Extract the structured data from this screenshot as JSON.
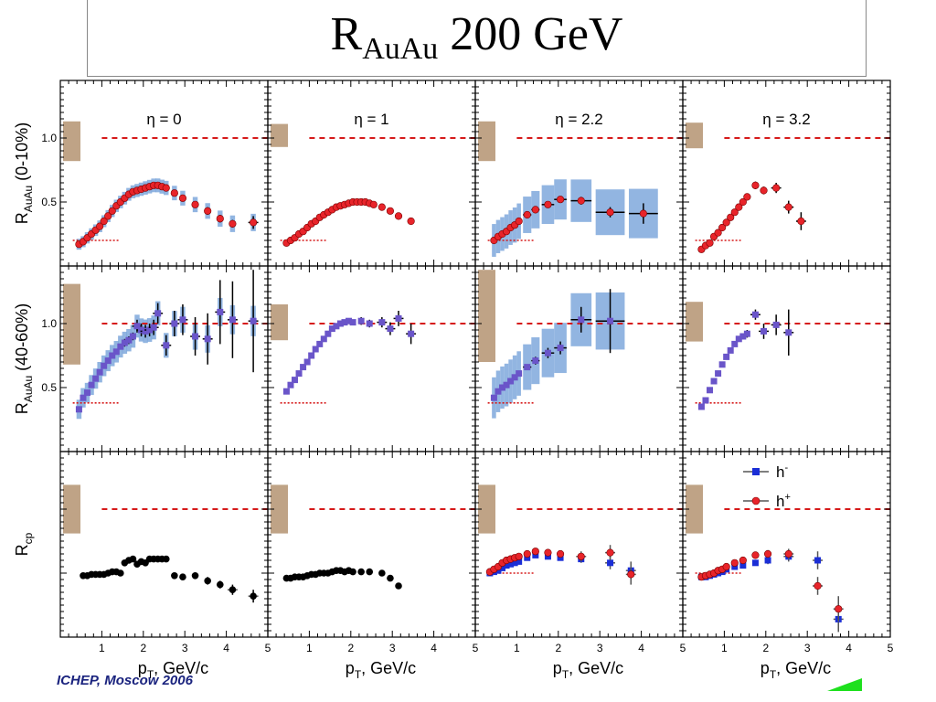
{
  "title": {
    "main": "R",
    "sub": "AuAu",
    "rest": " 200 GeV"
  },
  "footer": "ICHEP, Moscow 2006",
  "colors": {
    "red_marker": "#e8242a",
    "blue_marker": "#1b2ed6",
    "purple_marker": "#6a55c9",
    "band": "#7fa8dc",
    "norm_box": "#bfa386",
    "ref_line": "#d61a1a"
  },
  "chart_data": {
    "type": "scatter",
    "columns": [
      "η = 0",
      "η = 1",
      "η = 2.2",
      "η = 3.2"
    ],
    "rows": [
      {
        "ylabel_main": "R",
        "ylabel_sub": "AuAu",
        "ylabel_rest": " (0-10%)"
      },
      {
        "ylabel_main": "R",
        "ylabel_sub": "AuAu",
        "ylabel_rest": " (40-60%)"
      },
      {
        "ylabel_main": "R",
        "ylabel_sub": "cp",
        "ylabel_rest": ""
      }
    ],
    "xlabel_main": "p",
    "xlabel_sub": "T",
    "xlabel_rest": ", GeV/c",
    "xlim": [
      0,
      5
    ],
    "ylim": [
      0.0,
      1.45
    ],
    "x_ticks": [
      "1",
      "2",
      "3",
      "4",
      "5"
    ],
    "y_ticks": [
      "0.5",
      "1.0"
    ],
    "y_tick_values": [
      0.5,
      1.0
    ],
    "legend": {
      "position": "top-right of bottom-right panel",
      "entries": [
        "h-",
        "h+"
      ]
    },
    "panels": [
      {
        "row": 0,
        "col": 0,
        "marker": "red",
        "norm": [
          0.82,
          1.13
        ],
        "x": [
          0.45,
          0.55,
          0.65,
          0.75,
          0.85,
          0.95,
          1.05,
          1.15,
          1.25,
          1.35,
          1.45,
          1.55,
          1.65,
          1.75,
          1.85,
          1.95,
          2.05,
          2.15,
          2.25,
          2.35,
          2.45,
          2.55,
          2.75,
          2.95,
          3.25,
          3.55,
          3.85,
          4.15,
          4.65
        ],
        "y": [
          0.17,
          0.19,
          0.22,
          0.25,
          0.28,
          0.31,
          0.35,
          0.39,
          0.43,
          0.47,
          0.5,
          0.53,
          0.56,
          0.58,
          0.59,
          0.6,
          0.61,
          0.62,
          0.63,
          0.63,
          0.62,
          0.61,
          0.57,
          0.53,
          0.48,
          0.43,
          0.37,
          0.33,
          0.34
        ],
        "yerr": [
          0.01,
          0.01,
          0.01,
          0.01,
          0.01,
          0.01,
          0.01,
          0.01,
          0.01,
          0.01,
          0.01,
          0.01,
          0.01,
          0.01,
          0.01,
          0.01,
          0.01,
          0.01,
          0.01,
          0.01,
          0.01,
          0.01,
          0.02,
          0.02,
          0.02,
          0.03,
          0.03,
          0.03,
          0.05
        ],
        "band": 0.04
      },
      {
        "row": 0,
        "col": 1,
        "marker": "red",
        "norm": [
          0.93,
          1.11
        ],
        "x": [
          0.45,
          0.55,
          0.65,
          0.75,
          0.85,
          0.95,
          1.05,
          1.15,
          1.25,
          1.35,
          1.45,
          1.55,
          1.65,
          1.75,
          1.85,
          1.95,
          2.05,
          2.15,
          2.25,
          2.35,
          2.45,
          2.55,
          2.75,
          2.95,
          3.15,
          3.45
        ],
        "y": [
          0.18,
          0.2,
          0.22,
          0.25,
          0.27,
          0.3,
          0.33,
          0.35,
          0.38,
          0.4,
          0.42,
          0.44,
          0.46,
          0.47,
          0.48,
          0.49,
          0.5,
          0.5,
          0.5,
          0.5,
          0.49,
          0.48,
          0.46,
          0.43,
          0.39,
          0.35
        ],
        "yerr": [
          0.005,
          0.005,
          0.005,
          0.005,
          0.005,
          0.005,
          0.005,
          0.005,
          0.005,
          0.005,
          0.005,
          0.005,
          0.005,
          0.005,
          0.005,
          0.005,
          0.005,
          0.005,
          0.005,
          0.005,
          0.005,
          0.005,
          0.01,
          0.01,
          0.01,
          0.015
        ],
        "band": 0
      },
      {
        "row": 0,
        "col": 2,
        "marker": "red",
        "norm": [
          0.82,
          1.13
        ],
        "x": [
          0.45,
          0.55,
          0.65,
          0.75,
          0.85,
          0.95,
          1.05,
          1.25,
          1.45,
          1.75,
          2.05,
          2.55,
          3.25,
          4.05
        ],
        "y": [
          0.2,
          0.23,
          0.25,
          0.27,
          0.3,
          0.32,
          0.35,
          0.4,
          0.44,
          0.48,
          0.52,
          0.51,
          0.42,
          0.41
        ],
        "yerr": [
          0.01,
          0.01,
          0.01,
          0.01,
          0.01,
          0.01,
          0.01,
          0.02,
          0.02,
          0.02,
          0.02,
          0.03,
          0.04,
          0.08
        ],
        "xerr": [
          0.05,
          0.05,
          0.05,
          0.05,
          0.05,
          0.05,
          0.05,
          0.1,
          0.1,
          0.15,
          0.15,
          0.25,
          0.35,
          0.35
        ],
        "band": 0.12
      },
      {
        "row": 0,
        "col": 3,
        "marker": "red",
        "norm": [
          0.92,
          1.12
        ],
        "x": [
          0.45,
          0.55,
          0.65,
          0.75,
          0.85,
          0.95,
          1.05,
          1.15,
          1.25,
          1.35,
          1.45,
          1.55,
          1.75,
          1.95,
          2.25,
          2.55,
          2.85
        ],
        "y": [
          0.13,
          0.16,
          0.18,
          0.23,
          0.26,
          0.3,
          0.34,
          0.38,
          0.42,
          0.46,
          0.5,
          0.54,
          0.63,
          0.59,
          0.61,
          0.46,
          0.35
        ],
        "yerr": [
          0.01,
          0.01,
          0.01,
          0.01,
          0.01,
          0.01,
          0.01,
          0.01,
          0.02,
          0.02,
          0.02,
          0.02,
          0.03,
          0.03,
          0.04,
          0.05,
          0.07
        ],
        "band": 0
      },
      {
        "row": 1,
        "col": 0,
        "marker": "purple",
        "norm": [
          0.68,
          1.31
        ],
        "x": [
          0.45,
          0.55,
          0.65,
          0.75,
          0.85,
          0.95,
          1.05,
          1.15,
          1.25,
          1.35,
          1.45,
          1.55,
          1.65,
          1.75,
          1.85,
          1.95,
          2.05,
          2.15,
          2.25,
          2.35,
          2.55,
          2.75,
          2.95,
          3.25,
          3.55,
          3.85,
          4.15,
          4.65
        ],
        "y": [
          0.33,
          0.42,
          0.46,
          0.52,
          0.57,
          0.62,
          0.67,
          0.71,
          0.75,
          0.78,
          0.82,
          0.85,
          0.87,
          0.9,
          0.98,
          0.95,
          0.94,
          0.95,
          0.97,
          1.08,
          0.83,
          1.0,
          1.03,
          0.9,
          0.88,
          1.09,
          1.03,
          1.02
        ],
        "yerr": [
          0.02,
          0.02,
          0.02,
          0.02,
          0.02,
          0.02,
          0.02,
          0.02,
          0.02,
          0.02,
          0.02,
          0.03,
          0.03,
          0.03,
          0.05,
          0.05,
          0.05,
          0.05,
          0.06,
          0.08,
          0.08,
          0.1,
          0.12,
          0.15,
          0.2,
          0.25,
          0.3,
          0.4
        ],
        "band": 0.07
      },
      {
        "row": 1,
        "col": 1,
        "marker": "purple",
        "norm": [
          0.87,
          1.15
        ],
        "x": [
          0.45,
          0.55,
          0.65,
          0.75,
          0.85,
          0.95,
          1.05,
          1.15,
          1.25,
          1.35,
          1.45,
          1.55,
          1.65,
          1.75,
          1.85,
          1.95,
          2.05,
          2.25,
          2.45,
          2.75,
          2.95,
          3.15,
          3.45
        ],
        "y": [
          0.47,
          0.52,
          0.56,
          0.61,
          0.66,
          0.7,
          0.75,
          0.8,
          0.84,
          0.88,
          0.92,
          0.96,
          0.98,
          1.0,
          1.01,
          1.02,
          1.01,
          1.02,
          1.0,
          1.01,
          0.96,
          1.04,
          0.92
        ],
        "yerr": [
          0.01,
          0.01,
          0.01,
          0.01,
          0.01,
          0.01,
          0.01,
          0.01,
          0.01,
          0.01,
          0.01,
          0.01,
          0.01,
          0.01,
          0.01,
          0.01,
          0.02,
          0.03,
          0.03,
          0.04,
          0.05,
          0.06,
          0.08
        ],
        "band": 0
      },
      {
        "row": 1,
        "col": 2,
        "marker": "purple",
        "norm": [
          0.7,
          1.42
        ],
        "x": [
          0.45,
          0.55,
          0.65,
          0.75,
          0.85,
          0.95,
          1.05,
          1.25,
          1.45,
          1.75,
          2.05,
          2.55,
          3.25
        ],
        "y": [
          0.42,
          0.47,
          0.5,
          0.52,
          0.55,
          0.58,
          0.61,
          0.66,
          0.71,
          0.77,
          0.81,
          1.03,
          1.02
        ],
        "yerr": [
          0.02,
          0.02,
          0.02,
          0.02,
          0.02,
          0.02,
          0.02,
          0.02,
          0.03,
          0.04,
          0.05,
          0.1,
          0.25
        ],
        "xerr": [
          0.05,
          0.05,
          0.05,
          0.05,
          0.05,
          0.05,
          0.05,
          0.1,
          0.1,
          0.15,
          0.15,
          0.25,
          0.35
        ],
        "band": 0.15
      },
      {
        "row": 1,
        "col": 3,
        "marker": "purple",
        "norm": [
          0.86,
          1.17
        ],
        "x": [
          0.45,
          0.55,
          0.65,
          0.75,
          0.85,
          0.95,
          1.05,
          1.15,
          1.25,
          1.35,
          1.45,
          1.55,
          1.75,
          1.95,
          2.25,
          2.55
        ],
        "y": [
          0.35,
          0.4,
          0.48,
          0.55,
          0.61,
          0.68,
          0.74,
          0.79,
          0.84,
          0.88,
          0.9,
          0.92,
          1.07,
          0.94,
          0.99,
          0.93
        ],
        "yerr": [
          0.02,
          0.02,
          0.02,
          0.02,
          0.02,
          0.02,
          0.02,
          0.02,
          0.02,
          0.02,
          0.02,
          0.03,
          0.04,
          0.06,
          0.08,
          0.18
        ],
        "band": 0
      }
    ],
    "rcp_panels": [
      {
        "col": 0,
        "norm": [
          0.81,
          1.19
        ],
        "series": [
          {
            "marker": "black",
            "x": [
              0.55,
              0.65,
              0.75,
              0.85,
              0.95,
              1.05,
              1.15,
              1.25,
              1.35,
              1.45,
              1.55,
              1.65,
              1.75,
              1.85,
              1.95,
              2.05,
              2.15,
              2.25,
              2.35,
              2.45,
              2.55,
              2.75,
              2.95,
              3.25,
              3.55,
              3.85,
              4.15,
              4.65
            ],
            "y": [
              0.48,
              0.48,
              0.49,
              0.49,
              0.49,
              0.49,
              0.5,
              0.51,
              0.51,
              0.5,
              0.58,
              0.6,
              0.61,
              0.57,
              0.59,
              0.58,
              0.61,
              0.61,
              0.61,
              0.61,
              0.61,
              0.48,
              0.47,
              0.48,
              0.44,
              0.41,
              0.37,
              0.32
            ],
            "yerr": [
              0.01,
              0.01,
              0.01,
              0.01,
              0.01,
              0.01,
              0.01,
              0.01,
              0.01,
              0.01,
              0.01,
              0.01,
              0.01,
              0.01,
              0.01,
              0.01,
              0.01,
              0.01,
              0.01,
              0.01,
              0.01,
              0.02,
              0.02,
              0.02,
              0.03,
              0.03,
              0.04,
              0.05
            ]
          }
        ]
      },
      {
        "col": 1,
        "norm": [
          0.81,
          1.19
        ],
        "series": [
          {
            "marker": "black",
            "x": [
              0.45,
              0.55,
              0.65,
              0.75,
              0.85,
              0.95,
              1.05,
              1.15,
              1.25,
              1.35,
              1.45,
              1.55,
              1.65,
              1.75,
              1.85,
              1.95,
              2.05,
              2.25,
              2.45,
              2.75,
              2.95,
              3.15
            ],
            "y": [
              0.46,
              0.46,
              0.47,
              0.47,
              0.47,
              0.48,
              0.49,
              0.49,
              0.5,
              0.5,
              0.5,
              0.51,
              0.52,
              0.52,
              0.51,
              0.52,
              0.51,
              0.51,
              0.51,
              0.5,
              0.46,
              0.4
            ],
            "yerr": [
              0.01,
              0.01,
              0.01,
              0.01,
              0.01,
              0.01,
              0.01,
              0.01,
              0.01,
              0.01,
              0.01,
              0.01,
              0.01,
              0.01,
              0.01,
              0.01,
              0.01,
              0.01,
              0.01,
              0.01,
              0.02,
              0.02
            ]
          }
        ]
      },
      {
        "col": 2,
        "norm": [
          0.81,
          1.19
        ],
        "series": [
          {
            "name": "h-",
            "marker": "blue",
            "x": [
              0.35,
              0.45,
              0.55,
              0.65,
              0.75,
              0.85,
              0.95,
              1.05,
              1.25,
              1.45,
              1.75,
              2.05,
              2.55,
              3.25,
              3.75
            ],
            "y": [
              0.5,
              0.51,
              0.52,
              0.54,
              0.56,
              0.57,
              0.58,
              0.59,
              0.62,
              0.64,
              0.63,
              0.62,
              0.61,
              0.58,
              0.52
            ],
            "yerr": [
              0.01,
              0.01,
              0.01,
              0.01,
              0.01,
              0.01,
              0.01,
              0.01,
              0.01,
              0.01,
              0.02,
              0.02,
              0.03,
              0.05,
              0.07
            ]
          },
          {
            "name": "h+",
            "marker": "red",
            "x": [
              0.35,
              0.45,
              0.55,
              0.65,
              0.75,
              0.85,
              0.95,
              1.05,
              1.25,
              1.45,
              1.75,
              2.05,
              2.55,
              3.25,
              3.75
            ],
            "y": [
              0.51,
              0.53,
              0.55,
              0.58,
              0.6,
              0.61,
              0.62,
              0.63,
              0.65,
              0.67,
              0.66,
              0.65,
              0.63,
              0.66,
              0.49
            ],
            "yerr": [
              0.01,
              0.01,
              0.01,
              0.01,
              0.01,
              0.01,
              0.01,
              0.01,
              0.01,
              0.01,
              0.02,
              0.02,
              0.04,
              0.06,
              0.08
            ]
          }
        ]
      },
      {
        "col": 3,
        "norm": [
          0.81,
          1.19
        ],
        "series": [
          {
            "name": "h-",
            "marker": "blue",
            "x": [
              0.45,
              0.55,
              0.65,
              0.75,
              0.85,
              0.95,
              1.05,
              1.25,
              1.45,
              1.75,
              2.05,
              2.55,
              3.25,
              3.75
            ],
            "y": [
              0.47,
              0.47,
              0.48,
              0.49,
              0.5,
              0.51,
              0.53,
              0.55,
              0.56,
              0.58,
              0.6,
              0.63,
              0.6,
              0.14
            ],
            "yerr": [
              0.01,
              0.01,
              0.01,
              0.01,
              0.01,
              0.01,
              0.01,
              0.01,
              0.02,
              0.02,
              0.03,
              0.04,
              0.07,
              0.1
            ]
          },
          {
            "name": "h+",
            "marker": "red",
            "x": [
              0.45,
              0.55,
              0.65,
              0.75,
              0.85,
              0.95,
              1.05,
              1.25,
              1.45,
              1.75,
              2.05,
              2.55,
              3.25,
              3.75
            ],
            "y": [
              0.47,
              0.48,
              0.49,
              0.5,
              0.52,
              0.53,
              0.55,
              0.58,
              0.6,
              0.64,
              0.65,
              0.65,
              0.4,
              0.22
            ],
            "yerr": [
              0.01,
              0.01,
              0.01,
              0.01,
              0.01,
              0.01,
              0.01,
              0.01,
              0.02,
              0.02,
              0.03,
              0.04,
              0.07,
              0.1
            ]
          }
        ]
      }
    ]
  }
}
